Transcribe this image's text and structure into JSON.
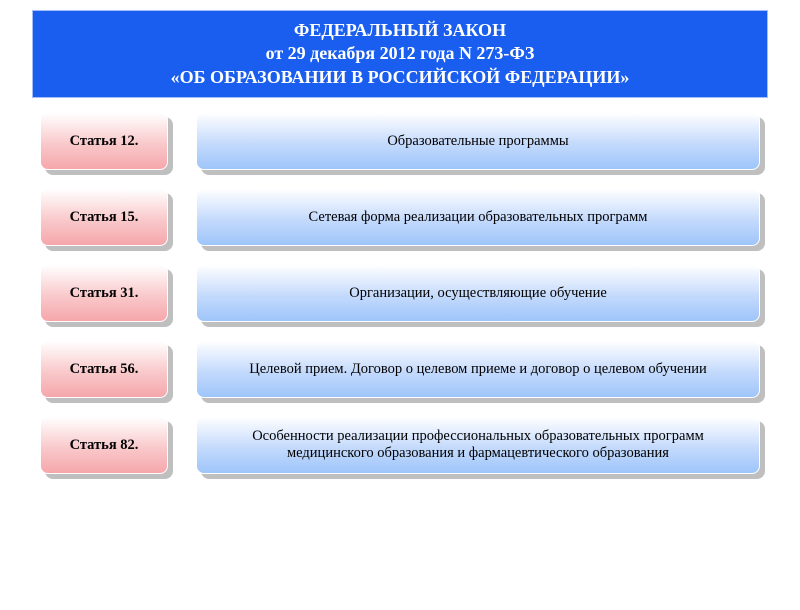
{
  "header": {
    "line1": "ФЕДЕРАЛЬНЫЙ ЗАКОН",
    "line2": "от 29 декабря 2012 года N 273-ФЗ",
    "line3": "«ОБ ОБРАЗОВАНИИ В РОССИЙСКОЙ ФЕДЕРАЦИИ»",
    "background_color": "#1a5ef0",
    "text_color": "#ffffff",
    "fontsize": 18
  },
  "styling": {
    "page_background": "#ffffff",
    "shadow_color": "#bfbfbf",
    "border_radius": 8,
    "card_border_color": "#ffffff",
    "article_gradient": [
      "#ffffff",
      "#f9c9cb",
      "#f5a7ab"
    ],
    "description_gradient": [
      "#ffffff",
      "#c4dafc",
      "#9ec5fa"
    ],
    "text_color": "#000000",
    "article_fontsize": 14.5,
    "description_fontsize": 14.5,
    "article_fontweight": "bold",
    "font_family": "Times New Roman",
    "row_gap": 18,
    "col_gap": 28,
    "article_width": 128
  },
  "rows": [
    {
      "article": "Статья 12.",
      "description": "Образовательные программы"
    },
    {
      "article": "Статья 15.",
      "description": "Сетевая форма реализации образовательных программ"
    },
    {
      "article": "Статья 31.",
      "description": "Организации, осуществляющие обучение"
    },
    {
      "article": "Статья 56.",
      "description": "Целевой прием. Договор о целевом приеме и договор о целевом обучении"
    },
    {
      "article": "Статья 82.",
      "description": "Особенности реализации профессиональных образовательных программ медицинского образования и фармацевтического образования"
    }
  ]
}
